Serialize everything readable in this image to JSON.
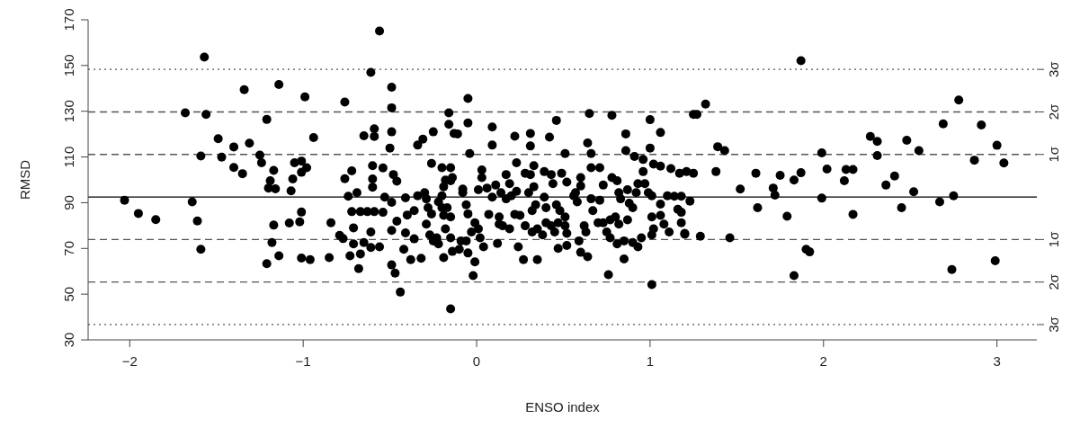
{
  "chart_data": {
    "type": "scatter",
    "xlabel": "ENSO index",
    "ylabel": "RMSD",
    "marker": "circle",
    "xlim": [
      -2.24,
      3.23
    ],
    "xticks": [
      -2,
      -1,
      0,
      1,
      2,
      3
    ],
    "ylim": [
      30,
      170
    ],
    "yticks": [
      30,
      50,
      70,
      90,
      110,
      130,
      150,
      170
    ],
    "ref_lines": [
      {
        "axis": "y",
        "value": 92.5,
        "color": "#000000",
        "line_style": "solid"
      },
      {
        "axis": "y",
        "value": 111.1,
        "color": "#555555",
        "line_style": "dashed",
        "label": "1σ"
      },
      {
        "axis": "y",
        "value": 73.9,
        "color": "#555555",
        "line_style": "dashed",
        "label": "1σ"
      },
      {
        "axis": "y",
        "value": 129.7,
        "color": "#555555",
        "line_style": "dashed",
        "label": "2σ"
      },
      {
        "axis": "y",
        "value": 55.3,
        "color": "#555555",
        "line_style": "dashed",
        "label": "2σ"
      },
      {
        "axis": "y",
        "value": 148.3,
        "color": "#555555",
        "line_style": "dotted",
        "label": "3σ"
      },
      {
        "axis": "y",
        "value": 36.7,
        "color": "#555555",
        "line_style": "dotted",
        "label": "3σ"
      }
    ],
    "series": [
      {
        "color": "#000000",
        "x": [
          -2.03,
          -1.95,
          -1.85,
          -1.57,
          -1.68,
          -1.56,
          -1.59,
          -1.64,
          -1.61,
          -1.59,
          -1.34,
          -1.49,
          -1.47,
          -1.4,
          -1.31,
          -1.4,
          -1.35,
          -1.14,
          -1.21,
          -1.25,
          -1.24,
          -1.17,
          -1.19,
          -1.2,
          -1.16,
          -1.07,
          -1.06,
          -1.05,
          -1.01,
          -1.01,
          -0.98,
          -0.99,
          -0.94,
          -1.01,
          -1.02,
          -1.08,
          -1.17,
          -1.18,
          -1.14,
          -1.21,
          -1.01,
          -0.96,
          -0.85,
          -0.84,
          -0.79,
          -0.77,
          -0.76,
          -0.76,
          -0.72,
          -0.74,
          -0.69,
          -0.72,
          -0.67,
          -0.63,
          -0.59,
          -0.54,
          -0.71,
          -0.71,
          -0.73,
          -0.67,
          -0.68,
          -0.65,
          -0.61,
          -0.61,
          -0.56,
          -0.56,
          -0.61,
          -0.49,
          -0.49,
          -0.59,
          -0.65,
          -0.59,
          -0.49,
          -0.5,
          -0.6,
          -0.54,
          -0.6,
          -0.6,
          -0.48,
          -0.46,
          -0.53,
          -0.49,
          -0.41,
          -0.4,
          -0.36,
          -0.46,
          -0.49,
          -0.41,
          -0.36,
          -0.42,
          -0.38,
          -0.49,
          -0.47,
          -0.44,
          -0.32,
          -0.34,
          -0.31,
          -0.25,
          -0.26,
          -0.2,
          -0.15,
          -0.14,
          -0.18,
          -0.19,
          -0.15,
          -0.16,
          -0.16,
          -0.13,
          -0.11,
          -0.05,
          -0.05,
          -0.04,
          -0.08,
          -0.08,
          -0.2,
          -0.22,
          -0.2,
          -0.17,
          -0.19,
          -0.15,
          -0.3,
          -0.34,
          -0.29,
          -0.28,
          -0.26,
          -0.29,
          -0.27,
          -0.23,
          -0.22,
          -0.25,
          -0.18,
          -0.15,
          -0.14,
          -0.19,
          -0.1,
          -0.09,
          -0.15,
          -0.06,
          -0.05,
          -0.02,
          -0.01,
          -0.06,
          -0.05,
          -0.01,
          0.01,
          -0.03,
          0.02,
          0.04,
          0.01,
          0.06,
          0.09,
          0.03,
          0.03,
          0.09,
          0.09,
          0.07,
          0.13,
          0.13,
          0.15,
          0.19,
          0.12,
          0.11,
          0.14,
          0.17,
          0.19,
          0.17,
          0.2,
          0.22,
          0.23,
          0.23,
          0.22,
          0.25,
          0.24,
          0.27,
          0.35,
          0.31,
          0.31,
          0.28,
          0.31,
          0.33,
          0.3,
          0.33,
          0.39,
          0.43,
          0.44,
          0.32,
          0.34,
          0.39,
          0.4,
          0.28,
          0.32,
          0.35,
          0.38,
          0.4,
          0.43,
          0.45,
          0.47,
          0.42,
          0.46,
          0.47,
          0.51,
          0.49,
          0.52,
          0.46,
          0.48,
          0.51,
          0.51,
          0.52,
          0.52,
          0.56,
          0.58,
          0.57,
          0.6,
          0.6,
          0.59,
          0.6,
          0.64,
          0.62,
          0.63,
          0.65,
          0.64,
          0.66,
          0.66,
          0.71,
          0.66,
          0.67,
          0.71,
          0.73,
          0.7,
          0.73,
          0.77,
          0.78,
          0.76,
          0.75,
          0.77,
          0.81,
          0.85,
          0.85,
          0.78,
          0.81,
          0.82,
          0.8,
          0.82,
          0.83,
          0.86,
          0.86,
          0.87,
          0.88,
          0.9,
          0.87,
          0.9,
          0.93,
          0.95,
          0.91,
          0.96,
          0.96,
          0.93,
          0.97,
          0.99,
          0.92,
          1.0,
          1.0,
          1.01,
          1.02,
          1.06,
          1.06,
          1.01,
          1.06,
          1.01,
          1.06,
          1.08,
          1.02,
          1.01,
          1.11,
          1.2,
          1.12,
          1.17,
          1.21,
          1.25,
          1.1,
          1.14,
          1.18,
          1.23,
          1.16,
          1.18,
          1.18,
          1.2,
          1.29,
          1.25,
          1.27,
          1.32,
          1.87,
          1.39,
          1.43,
          1.38,
          1.46,
          1.52,
          1.61,
          1.62,
          1.71,
          1.72,
          1.75,
          1.79,
          1.83,
          1.87,
          1.83,
          1.9,
          1.92,
          1.99,
          2.02,
          1.99,
          2.12,
          2.13,
          2.17,
          2.17,
          2.27,
          2.31,
          2.31,
          2.36,
          2.41,
          2.45,
          2.48,
          2.52,
          2.55,
          2.67,
          2.69,
          2.74,
          2.75,
          2.78,
          2.87,
          2.91,
          3.0,
          2.99,
          3.04
        ],
        "values": [
          91.1,
          85.3,
          82.6,
          153.7,
          129.3,
          128.6,
          110.4,
          90.4,
          82.0,
          69.6,
          139.4,
          118.0,
          109.9,
          114.4,
          116.0,
          105.4,
          102.7,
          141.7,
          126.4,
          110.8,
          107.5,
          104.1,
          99.6,
          96.4,
          96.1,
          95.2,
          100.4,
          107.5,
          108.2,
          103.3,
          105.3,
          136.3,
          118.5,
          85.9,
          81.6,
          81.1,
          80.2,
          72.6,
          66.8,
          63.3,
          65.8,
          65.1,
          66.0,
          81.2,
          75.7,
          74.3,
          134.0,
          100.5,
          103.9,
          92.8,
          94.4,
          86.1,
          86.1,
          86.1,
          86.1,
          85.8,
          79.0,
          72.0,
          66.8,
          67.6,
          61.2,
          72.6,
          77.2,
          70.4,
          70.7,
          165.1,
          147.0,
          140.5,
          131.5,
          122.3,
          119.3,
          119.0,
          121.0,
          113.9,
          106.2,
          105.2,
          100.4,
          96.8,
          102.3,
          99.4,
          92.4,
          90.2,
          92.1,
          84.6,
          86.5,
          81.9,
          77.9,
          76.8,
          74.2,
          69.6,
          65.1,
          62.8,
          59.2,
          50.9,
          65.7,
          115.2,
          117.8,
          121.0,
          107.2,
          105.3,
          105.3,
          101.0,
          99.9,
          97.0,
          99.6,
          129.3,
          124.3,
          120.3,
          120.1,
          124.9,
          135.6,
          111.5,
          96.0,
          94.4,
          93.0,
          90.4,
          87.8,
          87.8,
          84.5,
          83.8,
          94.4,
          93.0,
          91.7,
          87.8,
          85.1,
          80.6,
          75.9,
          74.6,
          72.0,
          73.3,
          78.6,
          74.6,
          68.7,
          66.0,
          69.6,
          73.3,
          43.6,
          73.3,
          68.0,
          58.1,
          64.1,
          89.1,
          85.1,
          81.2,
          78.6,
          77.2,
          74.6,
          70.7,
          95.7,
          96.4,
          92.4,
          104.3,
          101.0,
          123.1,
          115.2,
          84.9,
          83.8,
          80.6,
          79.9,
          78.6,
          72.2,
          97.7,
          94.4,
          102.3,
          98.3,
          91.7,
          93.0,
          119.1,
          107.5,
          95.0,
          84.9,
          84.5,
          70.7,
          65.1,
          65.1,
          120.3,
          114.8,
          102.9,
          102.3,
          97.0,
          94.4,
          106.2,
          103.6,
          102.3,
          98.3,
          86.5,
          89.1,
          92.4,
          87.8,
          79.9,
          77.2,
          78.6,
          75.9,
          81.2,
          79.9,
          77.2,
          81.2,
          118.7,
          126.0,
          70.0,
          111.5,
          102.9,
          99.0,
          89.1,
          86.5,
          83.8,
          79.9,
          76.6,
          71.3,
          93.0,
          90.4,
          94.4,
          101.0,
          97.3,
          73.3,
          68.3,
          66.4,
          79.9,
          77.2,
          129.0,
          116.1,
          111.5,
          105.3,
          105.3,
          91.7,
          86.5,
          91.1,
          97.7,
          81.2,
          81.2,
          82.5,
          128.2,
          58.5,
          77.2,
          74.6,
          72.0,
          65.4,
          73.3,
          101.0,
          99.6,
          94.4,
          83.8,
          80.6,
          91.7,
          120.1,
          112.8,
          95.7,
          89.8,
          87.8,
          82.5,
          72.6,
          70.7,
          74.6,
          110.2,
          108.9,
          103.6,
          98.3,
          98.3,
          94.4,
          94.4,
          126.3,
          113.9,
          54.2,
          106.9,
          106.0,
          120.7,
          93.0,
          89.4,
          83.8,
          84.5,
          80.6,
          78.6,
          75.9,
          77.2,
          76.2,
          104.9,
          102.9,
          103.6,
          102.9,
          93.0,
          92.8,
          92.8,
          90.7,
          87.1,
          85.8,
          81.2,
          76.6,
          75.3,
          128.6,
          128.6,
          133.1,
          152.1,
          114.5,
          112.8,
          103.6,
          74.6,
          96.0,
          102.9,
          87.8,
          96.4,
          93.3,
          102.0,
          84.1,
          99.9,
          103.1,
          58.1,
          69.6,
          68.5,
          111.8,
          104.7,
          92.0,
          99.6,
          104.5,
          104.5,
          84.9,
          119.0,
          116.8,
          110.6,
          97.7,
          101.7,
          87.8,
          117.3,
          94.8,
          112.8,
          90.4,
          124.5,
          60.8,
          93.0,
          134.9,
          108.6,
          124.0,
          115.1,
          64.6,
          107.4
        ]
      }
    ]
  }
}
